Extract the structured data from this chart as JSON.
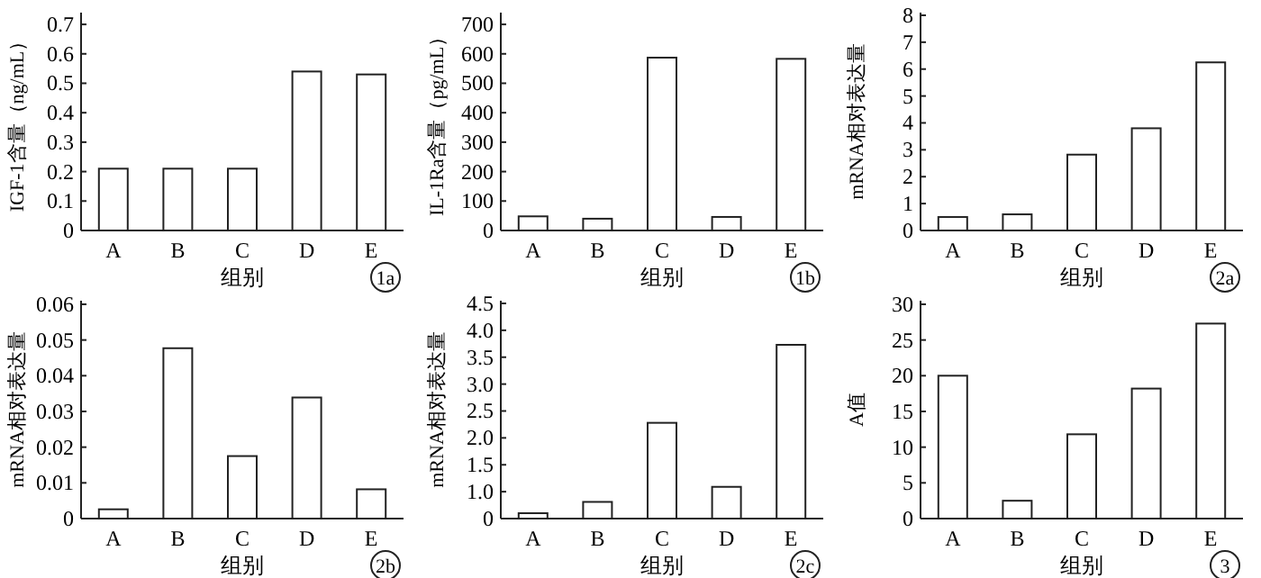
{
  "chart_data": [
    {
      "type": "bar",
      "categories": [
        "A",
        "B",
        "C",
        "D",
        "E"
      ],
      "values": [
        0.21,
        0.21,
        0.21,
        0.54,
        0.53
      ],
      "color": "#ffffff",
      "xlabel": "组别",
      "ylabel": "IGF-1含量（ng/mL）",
      "ylim": [
        0,
        0.74
      ],
      "yticks": [
        0,
        0.1,
        0.2,
        0.3,
        0.4,
        0.5,
        0.6,
        0.7
      ],
      "annotations": [
        "1a"
      ]
    },
    {
      "type": "bar",
      "categories": [
        "A",
        "B",
        "C",
        "D",
        "E"
      ],
      "values": [
        48,
        40,
        587,
        46,
        583
      ],
      "color": "#ffffff",
      "xlabel": "组别",
      "ylabel": "IL-1Ra含量（pg/mL）",
      "ylim": [
        0,
        740
      ],
      "yticks": [
        0,
        100,
        200,
        300,
        400,
        500,
        600,
        700
      ],
      "annotations": [
        "1b"
      ]
    },
    {
      "type": "bar",
      "categories": [
        "A",
        "B",
        "C",
        "D",
        "E"
      ],
      "values": [
        0.5,
        0.6,
        2.82,
        3.8,
        6.25
      ],
      "color": "#ffffff",
      "xlabel": "组别",
      "ylabel": "mRNA相对表达量",
      "ylim": [
        0,
        8.1
      ],
      "yticks": [
        0,
        1,
        2,
        3,
        4,
        5,
        6,
        7,
        8
      ],
      "annotations": [
        "2a"
      ]
    },
    {
      "type": "bar",
      "categories": [
        "A",
        "B",
        "C",
        "D",
        "E"
      ],
      "values": [
        0.0026,
        0.0477,
        0.0175,
        0.0339,
        0.0082
      ],
      "color": "#ffffff",
      "xlabel": "组别",
      "ylabel": "mRNA相对表达量",
      "ylim": [
        0,
        0.061
      ],
      "yticks": [
        0,
        0.01,
        0.02,
        0.03,
        0.04,
        0.05,
        0.06
      ],
      "annotations": [
        "2b"
      ]
    },
    {
      "type": "bar",
      "categories": [
        "A",
        "B",
        "C",
        "D",
        "E"
      ],
      "values": [
        0.6,
        0.81,
        2.28,
        1.09,
        3.73
      ],
      "color": "#ffffff",
      "xlabel": "组别",
      "ylabel": "mRNA相对表达量",
      "ylim": [
        0.5,
        4.55
      ],
      "yticks": [
        {
          "value": 0.5,
          "label": "0"
        },
        {
          "value": 1,
          "label": "1.0"
        },
        1.5,
        {
          "value": 2,
          "label": "2.0"
        },
        2.5,
        {
          "value": 3,
          "label": "3.0"
        },
        3.5,
        {
          "value": 4,
          "label": "4.0"
        },
        4.5
      ],
      "annotations": [
        "2c"
      ]
    },
    {
      "type": "bar",
      "categories": [
        "A",
        "B",
        "C",
        "D",
        "E"
      ],
      "values": [
        20,
        2.5,
        11.8,
        18.2,
        27.3
      ],
      "color": "#ffffff",
      "xlabel": "组别",
      "ylabel": "A值",
      "ylim": [
        0,
        30.5
      ],
      "yticks": [
        0,
        5,
        10,
        15,
        20,
        25,
        30
      ],
      "annotations": [
        "3"
      ]
    }
  ]
}
